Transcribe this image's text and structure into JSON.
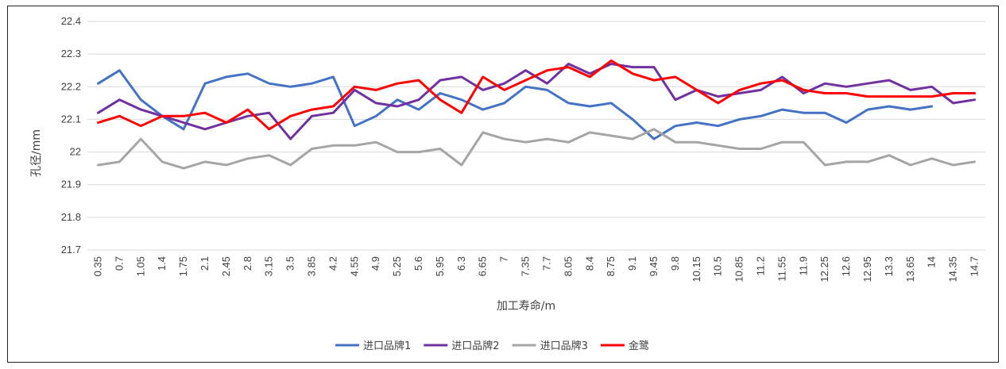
{
  "chart_data": {
    "type": "line",
    "title": "",
    "xlabel": "加工寿命/m",
    "ylabel": "孔径/mm",
    "ylim": [
      21.7,
      22.4
    ],
    "yticks": [
      "21.7",
      "21.8",
      "21.9",
      "22",
      "22.1",
      "22.2",
      "22.3",
      "22.4"
    ],
    "grid": "horizontal",
    "legend": "bottom",
    "categories": [
      "0.35",
      "0.7",
      "1.05",
      "1.4",
      "1.75",
      "2.1",
      "2.45",
      "2.8",
      "3.15",
      "3.5",
      "3.85",
      "4.2",
      "4.55",
      "4.9",
      "5.25",
      "5.6",
      "5.95",
      "6.3",
      "6.65",
      "7",
      "7.35",
      "7.7",
      "8.05",
      "8.4",
      "8.75",
      "9.1",
      "9.45",
      "9.8",
      "10.15",
      "10.5",
      "10.85",
      "11.2",
      "11.55",
      "11.9",
      "12.25",
      "12.6",
      "12.95",
      "13.3",
      "13.65",
      "14",
      "14.35",
      "14.7"
    ],
    "series": [
      {
        "name": "进口品牌1",
        "color": "#4472c4",
        "values": [
          22.21,
          22.25,
          22.16,
          22.11,
          22.07,
          22.21,
          22.23,
          22.24,
          22.21,
          22.2,
          22.21,
          22.23,
          22.08,
          22.11,
          22.16,
          22.13,
          22.18,
          22.16,
          22.13,
          22.15,
          22.2,
          22.19,
          22.15,
          22.14,
          22.15,
          22.1,
          22.04,
          22.08,
          22.09,
          22.08,
          22.1,
          22.11,
          22.13,
          22.12,
          22.12,
          22.09,
          22.13,
          22.14,
          22.13,
          22.14,
          null,
          null
        ]
      },
      {
        "name": "进口品牌2",
        "color": "#7030a0",
        "values": [
          22.12,
          22.16,
          22.13,
          22.11,
          22.09,
          22.07,
          22.09,
          22.11,
          22.12,
          22.04,
          22.11,
          22.12,
          22.19,
          22.15,
          22.14,
          22.16,
          22.22,
          22.23,
          22.19,
          22.21,
          22.25,
          22.21,
          22.27,
          22.24,
          22.27,
          22.26,
          22.26,
          22.16,
          22.19,
          22.17,
          22.18,
          22.19,
          22.23,
          22.18,
          22.21,
          22.2,
          22.21,
          22.22,
          22.19,
          22.2,
          22.15,
          22.16
        ]
      },
      {
        "name": "进口品牌3",
        "color": "#a5a5a5",
        "values": [
          21.96,
          21.97,
          22.04,
          21.97,
          21.95,
          21.97,
          21.96,
          21.98,
          21.99,
          21.96,
          22.01,
          22.02,
          22.02,
          22.03,
          22.0,
          22.0,
          22.01,
          21.96,
          22.06,
          22.04,
          22.03,
          22.04,
          22.03,
          22.06,
          22.05,
          22.04,
          22.07,
          22.03,
          22.03,
          22.02,
          22.01,
          22.01,
          22.03,
          22.03,
          21.96,
          21.97,
          21.97,
          21.99,
          21.96,
          21.98,
          21.96,
          21.97
        ]
      },
      {
        "name": "金鹭",
        "color": "#ff0000",
        "values": [
          22.09,
          22.11,
          22.08,
          22.11,
          22.11,
          22.12,
          22.09,
          22.13,
          22.07,
          22.11,
          22.13,
          22.14,
          22.2,
          22.19,
          22.21,
          22.22,
          22.16,
          22.12,
          22.23,
          22.19,
          22.22,
          22.25,
          22.26,
          22.23,
          22.28,
          22.24,
          22.22,
          22.23,
          22.19,
          22.15,
          22.19,
          22.21,
          22.22,
          22.19,
          22.18,
          22.18,
          22.17,
          22.17,
          22.17,
          22.17,
          22.18,
          22.18
        ]
      }
    ]
  }
}
